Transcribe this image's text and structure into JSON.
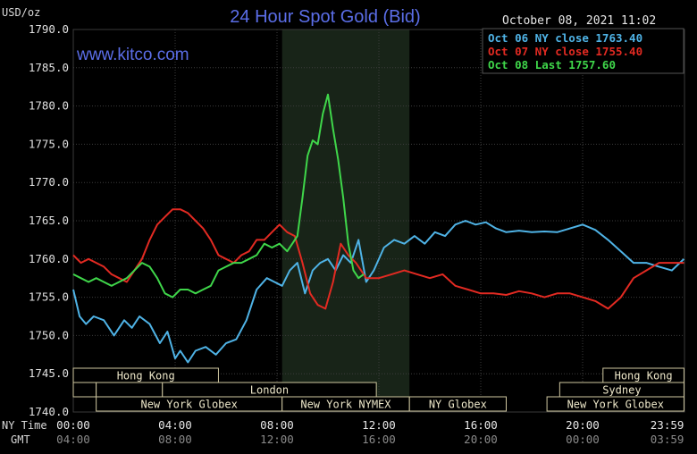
{
  "header": {
    "title": "24 Hour Spot Gold (Bid)",
    "datetime": "October 08, 2021 11:02",
    "watermark": "www.kitco.com"
  },
  "chart_data": {
    "type": "line",
    "title": "24 Hour Spot Gold (Bid)",
    "ylabel": "USD/oz",
    "ylim": [
      1740,
      1790
    ],
    "xlim_hours": [
      0,
      24
    ],
    "grid": true,
    "legend_position": "top-right",
    "y_ticks": [
      "1790.0",
      "1785.0",
      "1780.0",
      "1775.0",
      "1770.0",
      "1765.0",
      "1760.0",
      "1755.0",
      "1750.0",
      "1745.0",
      "1740.0"
    ],
    "x_tick_values": [
      0,
      4,
      8,
      12,
      16,
      20,
      23.98
    ],
    "x_ticks_ny": [
      "00:00",
      "04:00",
      "08:00",
      "12:00",
      "16:00",
      "20:00",
      "23:59"
    ],
    "x_ticks_gmt": [
      "04:00",
      "08:00",
      "12:00",
      "16:00",
      "20:00",
      "00:00",
      "03:59"
    ],
    "x_row_labels": {
      "ny": "NY Time",
      "gmt": "GMT"
    },
    "series": [
      {
        "name": "Oct 06 NY close 1763.40",
        "color": "#4fb3e6",
        "x": [
          0,
          0.25,
          0.5,
          0.8,
          1.2,
          1.6,
          2.0,
          2.3,
          2.6,
          3.0,
          3.4,
          3.7,
          4.0,
          4.2,
          4.5,
          4.8,
          5.2,
          5.6,
          6.0,
          6.4,
          6.8,
          7.2,
          7.6,
          7.9,
          8.2,
          8.5,
          8.8,
          9.1,
          9.4,
          9.7,
          10.0,
          10.3,
          10.6,
          10.9,
          11.2,
          11.5,
          11.8,
          12.2,
          12.6,
          13.0,
          13.4,
          13.8,
          14.2,
          14.6,
          15.0,
          15.4,
          15.8,
          16.2,
          16.6,
          17.0,
          17.5,
          18.0,
          18.5,
          19.0,
          19.5,
          20.0,
          20.5,
          21.0,
          21.5,
          22.0,
          22.5,
          23.0,
          23.5,
          23.98
        ],
        "values": [
          1756,
          1752.5,
          1751.5,
          1752.5,
          1752,
          1750,
          1752,
          1751,
          1752.5,
          1751.5,
          1749,
          1750.5,
          1747,
          1748,
          1746.5,
          1748,
          1748.5,
          1747.5,
          1749,
          1749.5,
          1752,
          1756,
          1757.5,
          1757,
          1756.5,
          1758.5,
          1759.5,
          1755.5,
          1758.5,
          1759.5,
          1760,
          1758.5,
          1760.5,
          1759.5,
          1762.5,
          1757,
          1758.5,
          1761.5,
          1762.5,
          1762,
          1763,
          1762,
          1763.5,
          1763,
          1764.5,
          1765,
          1764.5,
          1764.8,
          1764,
          1763.5,
          1763.7,
          1763.5,
          1763.6,
          1763.5,
          1764,
          1764.5,
          1763.8,
          1762.5,
          1761,
          1759.5,
          1759.5,
          1759,
          1758.5,
          1760
        ]
      },
      {
        "name": "Oct 07 NY close 1755.40",
        "color": "#e22a22",
        "x": [
          0,
          0.3,
          0.6,
          0.9,
          1.2,
          1.5,
          1.8,
          2.1,
          2.4,
          2.7,
          3.0,
          3.3,
          3.6,
          3.9,
          4.2,
          4.5,
          4.8,
          5.1,
          5.4,
          5.7,
          6.0,
          6.3,
          6.6,
          6.9,
          7.2,
          7.5,
          7.8,
          8.1,
          8.4,
          8.7,
          9.0,
          9.3,
          9.6,
          9.9,
          10.2,
          10.5,
          10.8,
          11.1,
          11.5,
          12.0,
          12.5,
          13.0,
          13.5,
          14.0,
          14.5,
          15.0,
          15.5,
          16.0,
          16.5,
          17.0,
          17.5,
          18.0,
          18.5,
          19.0,
          19.5,
          20.0,
          20.5,
          21.0,
          21.5,
          22.0,
          22.5,
          23.0,
          23.5,
          23.98
        ],
        "values": [
          1760.5,
          1759.5,
          1760,
          1759.5,
          1759,
          1758,
          1757.5,
          1757,
          1758.5,
          1760,
          1762.5,
          1764.5,
          1765.5,
          1766.5,
          1766.5,
          1766,
          1765,
          1764,
          1762.5,
          1760.5,
          1760,
          1759.5,
          1760.5,
          1761,
          1762.5,
          1762.5,
          1763.5,
          1764.5,
          1763.5,
          1763,
          1759.5,
          1755.5,
          1754,
          1753.5,
          1757,
          1762,
          1760.5,
          1759.5,
          1757.5,
          1757.5,
          1758,
          1758.5,
          1758,
          1757.5,
          1758,
          1756.5,
          1756,
          1755.5,
          1755.5,
          1755.3,
          1755.8,
          1755.5,
          1755,
          1755.5,
          1755.5,
          1755,
          1754.5,
          1753.5,
          1755,
          1757.5,
          1758.5,
          1759.5,
          1759.5,
          1759.5
        ]
      },
      {
        "name": "Oct 08 Last 1757.60",
        "color": "#3fd64a",
        "x": [
          0,
          0.3,
          0.6,
          0.9,
          1.2,
          1.5,
          1.8,
          2.1,
          2.4,
          2.7,
          3.0,
          3.3,
          3.6,
          3.9,
          4.2,
          4.5,
          4.8,
          5.1,
          5.4,
          5.7,
          6.0,
          6.3,
          6.6,
          6.9,
          7.2,
          7.5,
          7.8,
          8.1,
          8.4,
          8.6,
          8.8,
          9.0,
          9.2,
          9.4,
          9.6,
          9.8,
          10.0,
          10.2,
          10.4,
          10.6,
          10.8,
          11.0,
          11.2,
          11.4
        ],
        "values": [
          1758,
          1757.5,
          1757,
          1757.5,
          1757,
          1756.5,
          1757,
          1757.5,
          1758.5,
          1759.5,
          1759,
          1757.5,
          1755.5,
          1755,
          1756,
          1756,
          1755.5,
          1756,
          1756.5,
          1758.5,
          1759,
          1759.5,
          1759.5,
          1760,
          1760.5,
          1762,
          1761.5,
          1762,
          1761,
          1762,
          1763,
          1768,
          1773.5,
          1775.5,
          1775,
          1779,
          1781.5,
          1777,
          1773,
          1768,
          1762,
          1758.5,
          1757.5,
          1758
        ]
      }
    ],
    "shaded_session_hours": [
      8.2,
      13.2
    ],
    "sessions": [
      {
        "name": "Hong Kong",
        "row": 0,
        "start": 0,
        "end": 5.7
      },
      {
        "name": "",
        "row": 1,
        "start": 0,
        "end": 0.9
      },
      {
        "name": "",
        "row": 1,
        "start": 0.9,
        "end": 3.5
      },
      {
        "name": "London",
        "row": 1,
        "start": 3.5,
        "end": 11.9
      },
      {
        "name": "New York Globex",
        "row": 2,
        "start": 0.9,
        "end": 8.2
      },
      {
        "name": "New York NYMEX",
        "row": 2,
        "start": 8.2,
        "end": 13.2
      },
      {
        "name": "NY Globex",
        "row": 2,
        "start": 13.2,
        "end": 17.0
      },
      {
        "name": "Hong Kong",
        "row": 0,
        "start": 20.8,
        "end": 23.98
      },
      {
        "name": "Sydney",
        "row": 1,
        "start": 19.1,
        "end": 23.98
      },
      {
        "name": "New York Globex",
        "row": 2,
        "start": 18.6,
        "end": 23.98
      }
    ]
  }
}
